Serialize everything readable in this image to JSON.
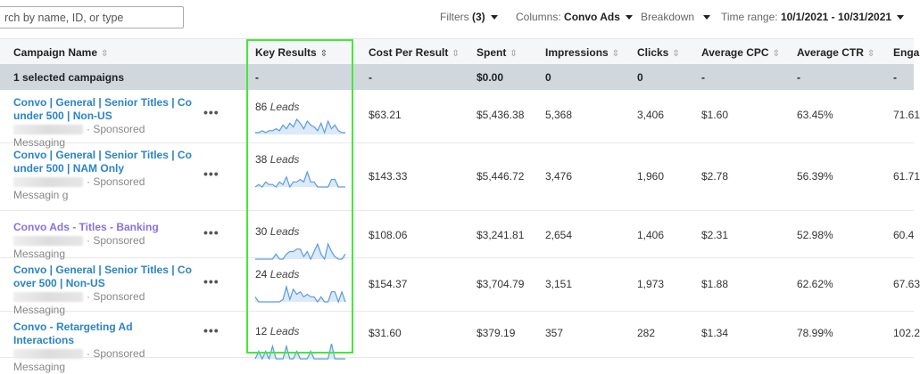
{
  "search": {
    "placeholder": "rch by name, ID, or type"
  },
  "toolbar": {
    "filters_label": "Filters",
    "filters_count": "(3)",
    "columns_label": "Columns:",
    "columns_value": "Convo Ads",
    "breakdown_label": "Breakdown",
    "time_range_label": "Time range:",
    "time_range_value": "10/1/2021 - 10/31/2021"
  },
  "columns": [
    "Campaign Name",
    "Key Results",
    "Cost Per Result",
    "Spent",
    "Impressions",
    "Clicks",
    "Average CPC",
    "Average CTR",
    "Enga"
  ],
  "summary": {
    "label": "1 selected campaigns",
    "key_results": "-",
    "cost_per_result": "-",
    "spent": "$0.00",
    "impressions": "0",
    "clicks": "0",
    "avg_cpc": "-",
    "avg_ctr": "-",
    "engagement": "-"
  },
  "sparkline_color": "#5a9be0",
  "rows": [
    {
      "name": "Convo | General | Senior Titles | Co under 500 | Non-US",
      "type": "Sponsored Messaging",
      "leads_count": "86",
      "leads_label": "Leads",
      "spark": [
        1,
        1,
        2,
        1,
        2,
        2,
        3,
        2,
        5,
        3,
        6,
        4,
        8,
        6,
        3,
        7,
        5,
        4,
        2,
        6,
        1,
        7,
        3,
        5,
        2,
        1,
        1
      ],
      "cost_per_result": "$63.21",
      "spent": "$5,436.38",
      "impressions": "5,368",
      "clicks": "3,406",
      "avg_cpc": "$1.60",
      "avg_ctr": "63.45%",
      "engagement": "71.61"
    },
    {
      "name": "Convo | General | Senior Titles | Co under 500 | NAM Only",
      "type": "Sponsored Messagin g",
      "leads_count": "38",
      "leads_label": "Leads",
      "spark": [
        0,
        1,
        0,
        2,
        1,
        1,
        0,
        2,
        1,
        4,
        0,
        2,
        2,
        3,
        2,
        6,
        2,
        2,
        0,
        0,
        0,
        0,
        3,
        3,
        0,
        0,
        0
      ],
      "cost_per_result": "$143.33",
      "spent": "$5,446.72",
      "impressions": "3,476",
      "clicks": "1,960",
      "avg_cpc": "$2.78",
      "avg_ctr": "56.39%",
      "engagement": "61.71"
    },
    {
      "name": "Convo Ads - Titles - Banking",
      "type": "Sponsored Messaging",
      "leads_count": "30",
      "leads_label": "Leads",
      "spark": [
        0,
        0,
        0,
        0,
        0,
        0,
        2,
        0,
        0,
        2,
        3,
        3,
        4,
        4,
        1,
        3,
        0,
        3,
        6,
        2,
        0,
        6,
        3,
        1,
        0,
        0,
        2
      ],
      "cost_per_result": "$108.06",
      "spent": "$3,241.81",
      "impressions": "2,654",
      "clicks": "1,406",
      "avg_cpc": "$2.31",
      "avg_ctr": "52.98%",
      "engagement": "60.4"
    },
    {
      "name": "Convo | General | Senior Titles | Co over 500 | Non-US",
      "type": "Sponsored Messaging",
      "leads_count": "24",
      "leads_label": "Leads",
      "spark": [
        2,
        0,
        0,
        0,
        0,
        0,
        0,
        0,
        1,
        6,
        1,
        5,
        3,
        4,
        2,
        3,
        2,
        2,
        0,
        2,
        0,
        0,
        4,
        4,
        0,
        4,
        0
      ],
      "cost_per_result": "$154.37",
      "spent": "$3,704.79",
      "impressions": "3,151",
      "clicks": "1,973",
      "avg_cpc": "$1.88",
      "avg_ctr": "62.62%",
      "engagement": "67.63"
    },
    {
      "name": "Convo - Retargeting Ad Interactions",
      "type": "Sponsored Messaging",
      "leads_count": "12",
      "leads_label": "Leads",
      "spark": [
        0,
        3,
        0,
        3,
        0,
        5,
        0,
        0,
        0,
        5,
        0,
        0,
        3,
        0,
        0,
        0,
        3,
        0,
        0,
        0,
        0,
        0,
        6,
        0,
        0,
        0,
        0
      ],
      "cost_per_result": "$31.60",
      "spent": "$379.19",
      "impressions": "357",
      "clicks": "282",
      "avg_cpc": "$1.34",
      "avg_ctr": "78.99%",
      "engagement": "102.2"
    }
  ]
}
